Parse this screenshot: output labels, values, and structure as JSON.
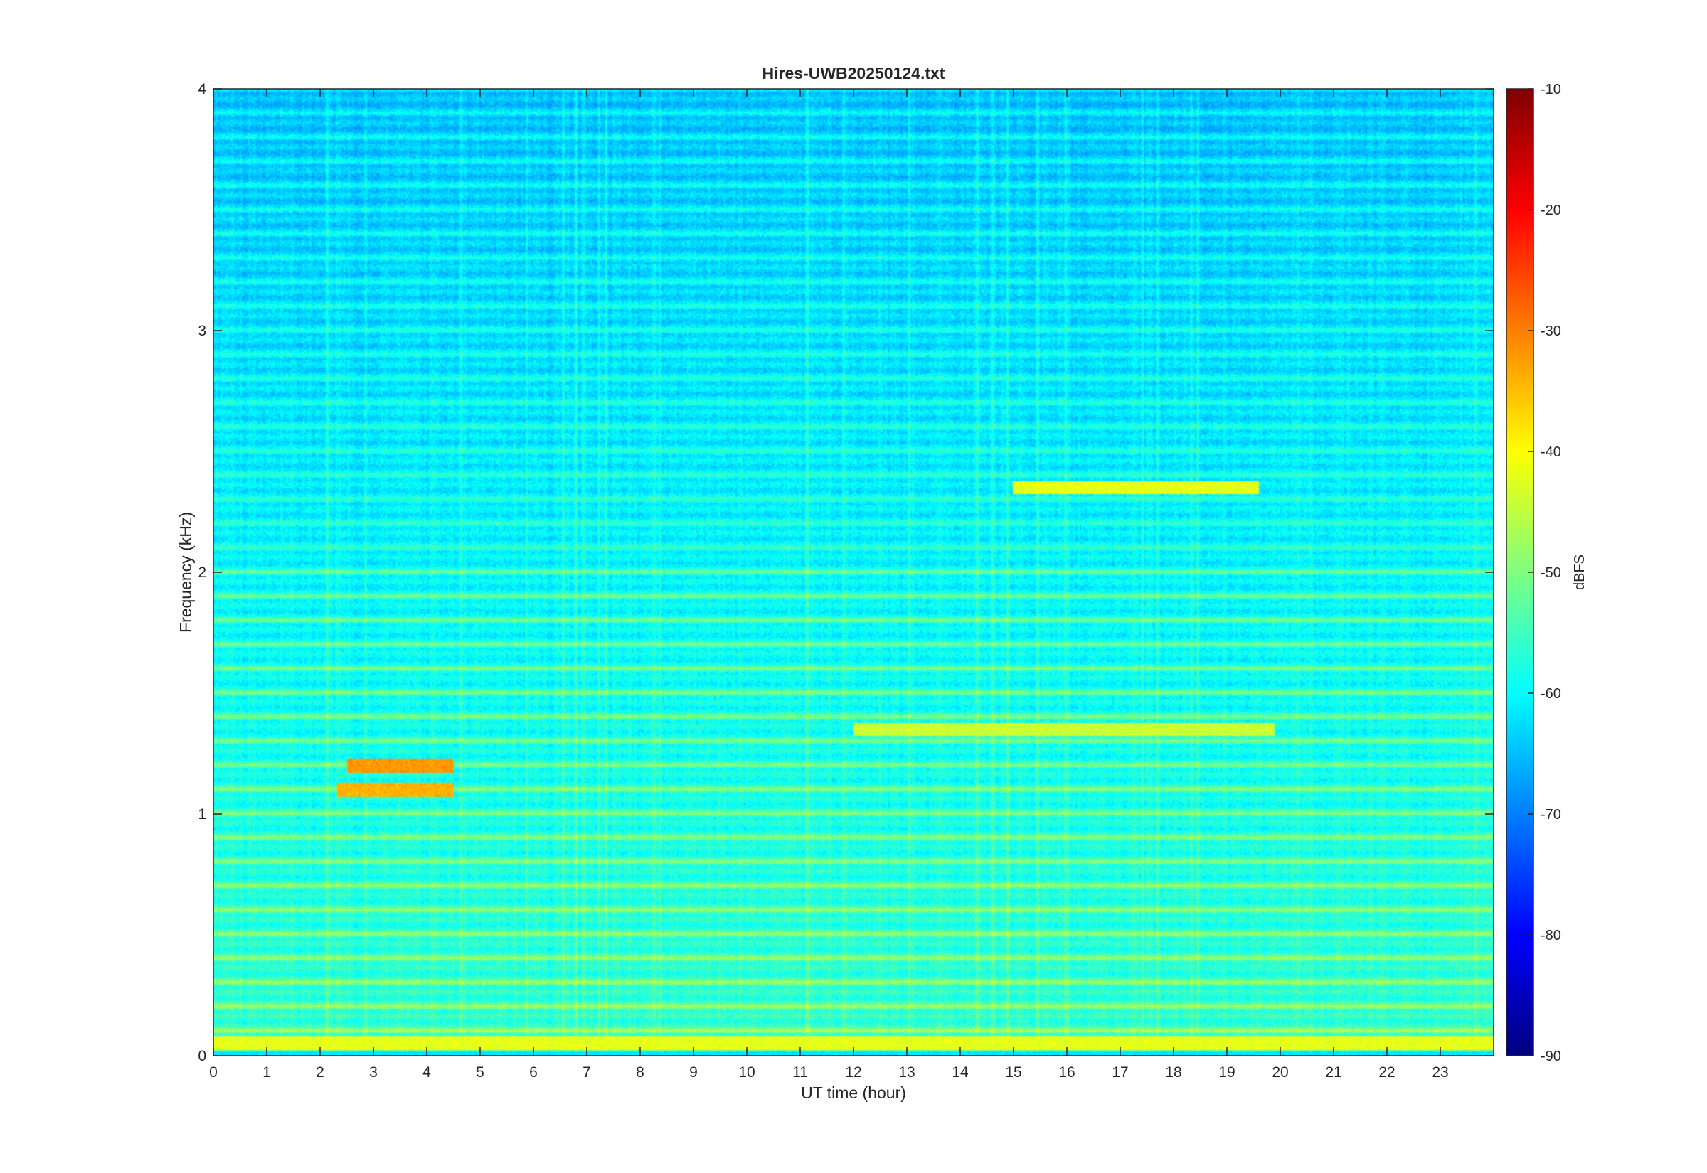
{
  "chart_data": {
    "type": "heatmap",
    "title": "Hires-UWB20250124.txt",
    "xlabel": "UT time (hour)",
    "ylabel": "Frequency (kHz)",
    "xlim": [
      0,
      24
    ],
    "ylim": [
      0,
      4
    ],
    "x_ticks": [
      "0",
      "1",
      "2",
      "3",
      "4",
      "5",
      "6",
      "7",
      "8",
      "9",
      "10",
      "11",
      "12",
      "13",
      "14",
      "15",
      "16",
      "17",
      "18",
      "19",
      "20",
      "21",
      "22",
      "23"
    ],
    "y_ticks": [
      "0",
      "1",
      "2",
      "3",
      "4"
    ],
    "colorbar": {
      "label": "dBFS",
      "range": [
        -90,
        -10
      ],
      "ticks": [
        "-10",
        "-20",
        "-30",
        "-40",
        "-50",
        "-60",
        "-70",
        "-80",
        "-90"
      ],
      "colormap": "jet"
    },
    "features": [
      {
        "name": "strong band",
        "freq_khz": 0.05,
        "time_h": [
          0,
          24
        ],
        "level_dbfs": -42
      },
      {
        "name": "harmonic bands",
        "freq_khz": [
          0.1,
          2.0
        ],
        "spacing_khz": 0.1,
        "level_dbfs": -45
      },
      {
        "name": "enhanced band",
        "freq_khz": 1.2,
        "time_h": [
          2.5,
          4.5
        ],
        "level_dbfs": -32
      },
      {
        "name": "enhanced band",
        "freq_khz": 1.1,
        "time_h": [
          2.3,
          4.5
        ],
        "level_dbfs": -34
      },
      {
        "name": "enhanced band",
        "freq_khz": 1.35,
        "time_h": [
          12.0,
          19.9
        ],
        "level_dbfs": -44
      },
      {
        "name": "enhanced band",
        "freq_khz": 2.35,
        "time_h": [
          15.0,
          19.6
        ],
        "level_dbfs": -42
      }
    ]
  }
}
